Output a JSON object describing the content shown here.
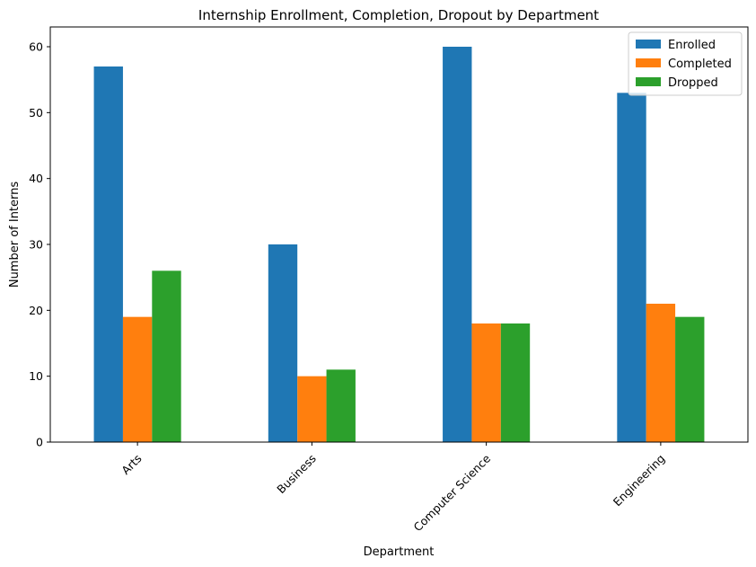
{
  "chart_data": {
    "type": "bar",
    "title": "Internship Enrollment, Completion, Dropout by Department",
    "xlabel": "Department",
    "ylabel": "Number of Interns",
    "categories": [
      "Arts",
      "Business",
      "Computer Science",
      "Engineering"
    ],
    "series": [
      {
        "name": "Enrolled",
        "values": [
          57,
          30,
          60,
          53
        ],
        "color": "#1f77b4"
      },
      {
        "name": "Completed",
        "values": [
          19,
          10,
          18,
          21
        ],
        "color": "#ff7f0e"
      },
      {
        "name": "Dropped",
        "values": [
          26,
          11,
          18,
          19
        ],
        "color": "#2ca02c"
      }
    ],
    "ylim": [
      0,
      63
    ],
    "yticks": [
      0,
      10,
      20,
      30,
      40,
      50,
      60
    ],
    "grid": false,
    "legend_position": "top-right"
  }
}
